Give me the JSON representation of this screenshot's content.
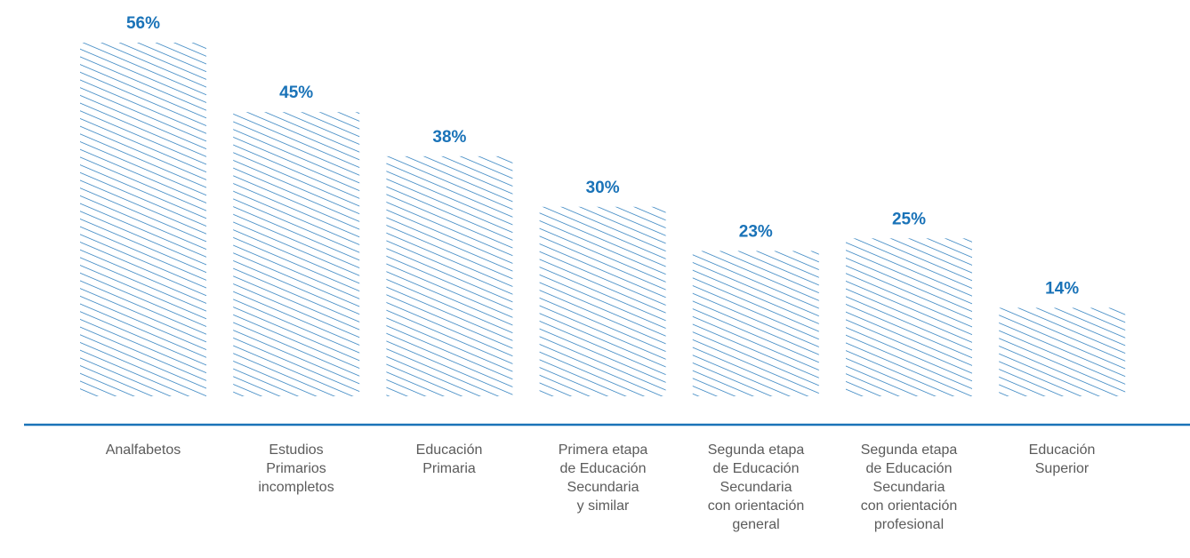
{
  "chart_data": {
    "type": "bar",
    "categories": [
      "Analfabetos",
      "Estudios\nPrimarios\nincompletos",
      "Educación\nPrimaria",
      "Primera etapa\nde Educación\nSecundaria\ny similar",
      "Segunda etapa\nde Educación\nSecundaria\ncon orientación\ngeneral",
      "Segunda etapa\nde Educación\nSecundaria\ncon orientación\nprofesional",
      "Educación\nSuperior"
    ],
    "values": [
      56,
      45,
      38,
      30,
      23,
      25,
      14
    ],
    "value_labels": [
      "56%",
      "45%",
      "38%",
      "30%",
      "23%",
      "25%",
      "14%"
    ],
    "bar_style": "diagonal-hatch",
    "legend": "none",
    "grid": false,
    "colors": {
      "bar_hatch": "#1a73b8",
      "value_label": "#1a73b8",
      "axis": "#1a73b8",
      "category_label": "#5b5b5b"
    }
  }
}
